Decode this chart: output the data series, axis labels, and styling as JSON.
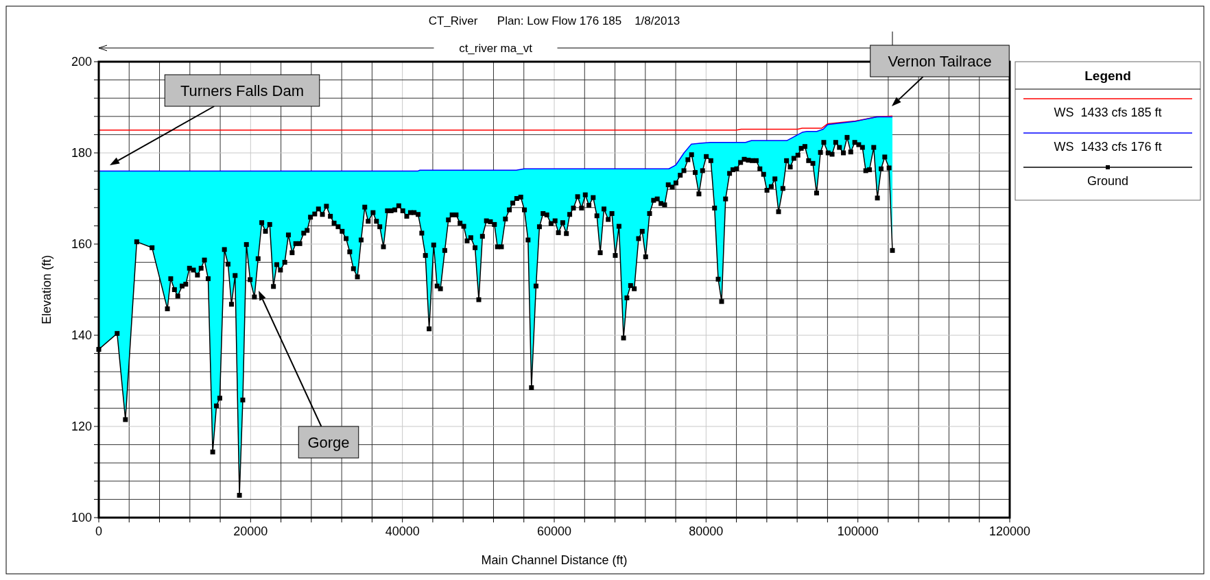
{
  "chart_data": {
    "type": "line",
    "title": "CT_River      Plan: Low Flow 176 185    1/8/2013",
    "xlabel": "Main Channel Distance (ft)",
    "ylabel": "Elevation (ft)",
    "legend_title": "Legend",
    "legend": "right",
    "grid": true,
    "xlim": [
      0,
      120000
    ],
    "ylim": [
      100,
      200
    ],
    "xticks": [
      0,
      {
        "value": 4000,
        "label": null
      },
      {
        "value": 8000,
        "label": null
      },
      {
        "value": 12000,
        "label": null
      },
      {
        "value": 16000,
        "label": null
      },
      20000,
      {
        "value": 24000,
        "label": null
      },
      {
        "value": 28000,
        "label": null
      },
      {
        "value": 32000,
        "label": null
      },
      {
        "value": 36000,
        "label": null
      },
      40000,
      {
        "value": 44000,
        "label": null
      },
      {
        "value": 48000,
        "label": null
      },
      {
        "value": 52000,
        "label": null
      },
      {
        "value": 56000,
        "label": null
      },
      60000,
      {
        "value": 64000,
        "label": null
      },
      {
        "value": 68000,
        "label": null
      },
      {
        "value": 72000,
        "label": null
      },
      {
        "value": 76000,
        "label": null
      },
      80000,
      {
        "value": 84000,
        "label": null
      },
      {
        "value": 88000,
        "label": null
      },
      {
        "value": 92000,
        "label": null
      },
      {
        "value": 96000,
        "label": null
      },
      100000,
      {
        "value": 104000,
        "label": null
      },
      {
        "value": 108000,
        "label": null
      },
      {
        "value": 112000,
        "label": null
      },
      {
        "value": 116000,
        "label": null
      },
      120000
    ],
    "yticks": [
      100,
      {
        "value": 104,
        "label": null
      },
      {
        "value": 108,
        "label": null
      },
      {
        "value": 112,
        "label": null
      },
      {
        "value": 116,
        "label": null
      },
      120,
      {
        "value": 124,
        "label": null
      },
      {
        "value": 128,
        "label": null
      },
      {
        "value": 132,
        "label": null
      },
      {
        "value": 136,
        "label": null
      },
      140,
      {
        "value": 144,
        "label": null
      },
      {
        "value": 148,
        "label": null
      },
      {
        "value": 152,
        "label": null
      },
      {
        "value": 156,
        "label": null
      },
      160,
      {
        "value": 164,
        "label": null
      },
      {
        "value": 168,
        "label": null
      },
      {
        "value": 172,
        "label": null
      },
      {
        "value": 176,
        "label": null
      },
      180,
      {
        "value": 184,
        "label": null
      },
      {
        "value": 188,
        "label": null
      },
      {
        "value": 192,
        "label": null
      },
      {
        "value": 196,
        "label": null
      },
      200
    ],
    "annotations": [
      "ct_river ma_vt",
      "Turners Falls Dam",
      "Gorge",
      "Vernon Tailrace"
    ],
    "series": [
      {
        "name": "WS  1433 cfs 185 ft",
        "color": "#ff0000",
        "x": [
          0,
          84000,
          84600,
          92050,
          92660,
          95230,
          96030,
          99670,
          102490,
          104550
        ],
        "values": [
          185.0,
          185.0,
          185.2,
          185.2,
          185.4,
          185.4,
          186.4,
          187.0,
          187.9,
          188.1
        ]
      },
      {
        "name": "WS  1433 cfs 176 ft",
        "color": "#0000ff",
        "x": [
          0,
          42000,
          42300,
          55000,
          56070,
          75100,
          76000,
          77100,
          78050,
          79140,
          80550,
          85200,
          86000,
          90640,
          92660,
          93270,
          94580,
          95430,
          96030,
          99670,
          100480,
          102490,
          104550
        ],
        "values": [
          176.0,
          176.0,
          176.2,
          176.2,
          176.5,
          176.5,
          177.3,
          180.0,
          181.9,
          182.1,
          182.3,
          182.3,
          182.7,
          182.7,
          184.5,
          184.7,
          184.7,
          185.2,
          186.2,
          186.9,
          187.2,
          187.9,
          187.9
        ]
      },
      {
        "name": "Ground",
        "color": "#000000",
        "marker": "square",
        "upper": [
          176.0,
          176.0,
          176.0,
          176.0,
          176.0,
          176.0,
          176.0,
          176.0,
          176.0,
          176.0,
          176.0,
          176.0,
          176.0,
          176.0,
          176.0,
          176.0,
          176.0,
          176.0,
          176.0,
          176.0,
          176.0,
          176.0,
          176.0,
          176.0,
          176.0,
          176.0,
          176.0,
          176.0,
          176.0,
          176.0,
          176.0,
          176.0,
          176.0,
          176.0,
          176.0,
          176.0,
          176.0,
          176.0,
          176.0,
          176.0,
          176.0,
          176.0,
          176.0,
          176.0,
          176.0,
          176.0,
          176.0,
          176.0,
          176.0,
          176.0,
          176.0,
          176.0,
          176.0,
          176.0,
          176.0,
          176.0,
          176.0,
          176.0,
          176.0,
          176.0,
          176.0,
          176.0,
          176.0,
          176.0,
          176.0,
          176.0,
          176.0,
          176.0,
          176.0,
          176.0,
          176.0,
          176.1,
          176.2,
          176.2,
          176.2,
          176.2,
          176.2,
          176.2,
          176.2,
          176.2,
          176.2,
          176.2,
          176.2,
          176.2,
          176.2,
          176.2,
          176.2,
          176.2,
          176.2,
          176.2,
          176.2,
          176.2,
          176.2,
          176.2,
          176.2,
          176.2,
          176.2,
          176.2,
          176.4,
          176.5,
          176.5,
          176.5,
          176.5,
          176.5,
          176.5,
          176.5,
          176.5,
          176.5,
          176.5,
          176.5,
          176.5,
          176.5,
          176.5,
          176.5,
          176.5,
          176.5,
          176.5,
          176.5,
          176.5,
          176.5,
          176.5,
          176.5,
          176.5,
          176.5,
          176.5,
          176.5,
          176.5,
          176.5,
          176.5,
          176.5,
          176.5,
          176.5,
          176.5,
          176.5,
          176.5,
          176.5,
          176.5,
          176.5,
          176.9,
          177.3,
          178.8,
          180.0,
          181.0,
          181.9,
          182.0,
          182.1,
          182.1,
          182.2,
          182.3,
          182.3,
          182.3,
          182.3,
          182.3,
          182.3,
          182.3,
          182.3,
          182.3,
          182.3,
          182.5,
          182.7,
          182.7,
          182.7,
          182.7,
          182.7,
          182.7,
          182.7,
          182.7,
          182.7,
          182.7,
          183.1,
          183.5,
          184.0,
          184.4,
          184.6,
          184.7,
          184.7,
          184.7,
          185.0,
          185.3,
          186.2,
          186.3,
          186.4,
          186.5,
          186.6,
          186.7,
          186.8,
          186.9,
          187.1,
          187.3,
          187.4,
          187.6,
          187.8,
          187.9,
          187.9,
          187.9,
          187.9,
          187.9
        ],
        "lower": [
          136.9,
          140.4,
          121.5,
          160.5,
          159.2,
          145.8,
          152.4,
          150.0,
          148.6,
          150.8,
          151.2,
          154.7,
          154.3,
          153.2,
          154.7,
          156.5,
          152.4,
          114.4,
          124.5,
          126.2,
          158.8,
          155.6,
          146.8,
          153.1,
          104.9,
          125.8,
          159.9,
          152.2,
          148.4,
          156.8,
          164.7,
          162.8,
          164.3,
          150.7,
          155.5,
          154.3,
          156.0,
          162.0,
          158.1,
          160.1,
          160.1,
          162.4,
          163.0,
          165.9,
          166.6,
          167.7,
          166.5,
          168.3,
          166.1,
          164.6,
          163.8,
          162.8,
          161.2,
          158.3,
          154.6,
          152.8,
          160.9,
          168.1,
          165.0,
          166.9,
          165.0,
          163.8,
          159.4,
          167.3,
          167.3,
          167.5,
          168.4,
          167.3,
          166.1,
          166.9,
          166.9,
          166.5,
          162.4,
          157.5,
          141.4,
          159.8,
          150.8,
          150.2,
          158.6,
          165.3,
          166.4,
          166.4,
          164.6,
          163.9,
          160.7,
          161.4,
          159.2,
          147.8,
          161.7,
          165.1,
          164.9,
          164.3,
          159.4,
          159.4,
          165.5,
          167.5,
          169.0,
          170.0,
          170.3,
          167.5,
          160.9,
          128.5,
          150.8,
          163.8,
          166.7,
          166.4,
          164.5,
          165.1,
          162.5,
          164.7,
          162.3,
          166.5,
          167.9,
          170.4,
          167.9,
          170.8,
          168.5,
          170.2,
          166.2,
          158.1,
          167.7,
          165.4,
          166.7,
          157.5,
          163.9,
          139.4,
          148.2,
          150.9,
          150.2,
          161.2,
          162.8,
          157.2,
          166.7,
          169.6,
          169.9,
          168.9,
          168.6,
          173.0,
          172.5,
          173.4,
          175.1,
          176.1,
          178.5,
          179.6,
          175.7,
          171.0,
          176.1,
          179.2,
          178.3,
          167.9,
          152.3,
          147.4,
          169.9,
          175.5,
          176.3,
          176.5,
          177.9,
          178.6,
          178.4,
          178.3,
          178.3,
          176.5,
          175.3,
          171.8,
          172.6,
          174.3,
          167.1,
          172.2,
          178.3,
          176.9,
          178.8,
          179.5,
          181.0,
          181.4,
          178.3,
          177.7,
          171.2,
          180.1,
          182.3,
          180.0,
          179.7,
          182.3,
          181.2,
          180.0,
          183.4,
          180.2,
          182.3,
          181.8,
          181.2,
          176.1,
          176.3,
          181.2,
          170.1,
          176.5,
          179.1,
          176.7,
          158.6
        ],
        "x": [
          0,
          2420,
          3510,
          5000,
          7020,
          9040,
          9480,
          9970,
          10410,
          10980,
          11460,
          11950,
          12470,
          13000,
          13480,
          13920,
          14410,
          15010,
          15500,
          15940,
          16550,
          17030,
          17480,
          17960,
          18530,
          18970,
          19450,
          19940,
          20500,
          20990,
          21470,
          21960,
          22520,
          23010,
          23450,
          23930,
          24500,
          24980,
          25470,
          25950,
          26480,
          27000,
          27450,
          27890,
          28450,
          28940,
          29460,
          29990,
          30510,
          31000,
          31530,
          32060,
          32580,
          33060,
          33550,
          34070,
          34560,
          35040,
          35490,
          36130,
          36580,
          37020,
          37500,
          38030,
          38510,
          39000,
          39520,
          40050,
          40570,
          41060,
          41540,
          42070,
          42550,
          43030,
          43520,
          44120,
          44570,
          45010,
          45580,
          46060,
          46550,
          47070,
          47590,
          48080,
          48520,
          49010,
          49570,
          50060,
          50540,
          51070,
          51590,
          52120,
          52520,
          53040,
          53570,
          54090,
          54540,
          55060,
          55590,
          56070,
          56550,
          57000,
          57600,
          58050,
          58530,
          59020,
          59580,
          60110,
          60550,
          61120,
          61600,
          62040,
          62530,
          63080,
          63600,
          64090,
          64570,
          65130,
          65620,
          66060,
          66550,
          67110,
          67600,
          68040,
          68530,
          69130,
          69570,
          70060,
          70540,
          71110,
          71590,
          72040,
          72560,
          73090,
          73570,
          74060,
          74540,
          75020,
          75550,
          76030,
          76600,
          77080,
          77610,
          78090,
          78570,
          79060,
          79540,
          80030,
          80630,
          81120,
          81600,
          82050,
          82570,
          83100,
          83540,
          84030,
          84550,
          85030,
          85560,
          86080,
          86610,
          87090,
          87580,
          88020,
          88590,
          89070,
          89550,
          90120,
          90600,
          91090,
          91570,
          92100,
          92540,
          93020,
          93510,
          94070,
          94560,
          95070,
          95510,
          96080,
          96600,
          97080,
          97570,
          98090,
          98580,
          99060,
          99590,
          100110,
          100600,
          101040,
          101520,
          102090,
          102570,
          103060,
          103540,
          104110,
          104550
        ],
        "values": [
          136.9,
          140.4,
          121.5,
          160.5,
          159.2,
          145.8,
          152.4,
          150.0,
          148.6,
          150.8,
          151.2,
          154.7,
          154.3,
          153.2,
          154.7,
          156.5,
          152.4,
          114.4,
          124.5,
          126.2,
          158.8,
          155.6,
          146.8,
          153.1,
          104.9,
          125.8,
          159.9,
          152.2,
          148.4,
          156.8,
          164.7,
          162.8,
          164.3,
          150.7,
          155.5,
          154.3,
          156.0,
          162.0,
          158.1,
          160.1,
          160.1,
          162.4,
          163.0,
          165.9,
          166.6,
          167.7,
          166.5,
          168.3,
          166.1,
          164.6,
          163.8,
          162.8,
          161.2,
          158.3,
          154.6,
          152.8,
          160.9,
          168.1,
          165.0,
          166.9,
          165.0,
          163.8,
          159.4,
          167.3,
          167.3,
          167.5,
          168.4,
          167.3,
          166.1,
          166.9,
          166.9,
          166.5,
          162.4,
          157.5,
          141.4,
          159.8,
          150.8,
          150.2,
          158.6,
          165.3,
          166.4,
          166.4,
          164.6,
          163.9,
          160.7,
          161.4,
          159.2,
          147.8,
          161.7,
          165.1,
          164.9,
          164.3,
          159.4,
          159.4,
          165.5,
          167.5,
          169.0,
          170.0,
          170.3,
          167.5,
          160.9,
          128.5,
          150.8,
          163.8,
          166.7,
          166.4,
          164.5,
          165.1,
          162.5,
          164.7,
          162.3,
          166.5,
          167.9,
          170.4,
          167.9,
          170.8,
          168.5,
          170.2,
          166.2,
          158.1,
          167.7,
          165.4,
          166.7,
          157.5,
          163.9,
          139.4,
          148.2,
          150.9,
          150.2,
          161.2,
          162.8,
          157.2,
          166.7,
          169.6,
          169.9,
          168.9,
          168.6,
          173.0,
          172.5,
          173.4,
          175.1,
          176.1,
          178.5,
          179.6,
          175.7,
          171.0,
          176.1,
          179.2,
          178.3,
          167.9,
          152.3,
          147.4,
          169.9,
          175.5,
          176.3,
          176.5,
          177.9,
          178.6,
          178.4,
          178.3,
          178.3,
          176.5,
          175.3,
          171.8,
          172.6,
          174.3,
          167.1,
          172.2,
          178.3,
          176.9,
          178.8,
          179.5,
          181.0,
          181.4,
          178.3,
          177.7,
          171.2,
          180.1,
          182.3,
          180.0,
          179.7,
          182.3,
          181.2,
          180.0,
          183.4,
          180.2,
          182.3,
          181.8,
          181.2,
          176.1,
          176.3,
          181.2,
          170.1,
          176.5,
          179.1,
          176.7,
          158.6
        ]
      }
    ]
  }
}
